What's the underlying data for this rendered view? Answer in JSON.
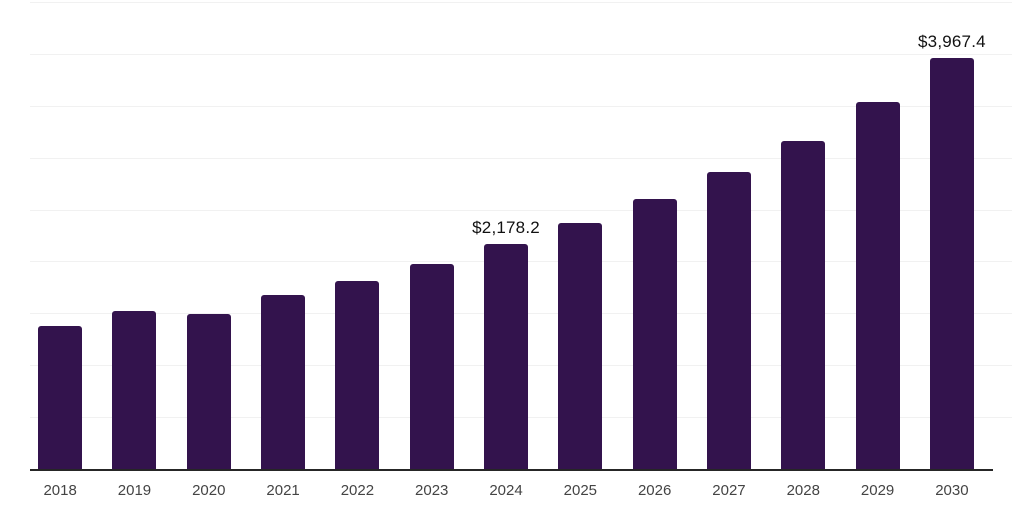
{
  "chart_data": {
    "type": "bar",
    "title": "",
    "xlabel": "",
    "ylabel": "",
    "categories": [
      "2018",
      "2019",
      "2020",
      "2021",
      "2022",
      "2023",
      "2024",
      "2025",
      "2026",
      "2027",
      "2028",
      "2029",
      "2030"
    ],
    "series": [
      {
        "name": "value",
        "values": [
          1390,
          1535,
          1505,
          1690,
          1820,
          1985,
          2178.2,
          2380,
          2610,
          2870,
          3170,
          3545,
          3967.4
        ]
      }
    ],
    "data_labels": [
      "",
      "",
      "",
      "",
      "",
      "",
      "$2,178.2",
      "",
      "",
      "",
      "",
      "",
      "$3,967.4"
    ],
    "ylim": [
      0,
      4500
    ],
    "grid_interval": 500,
    "grid": true,
    "legend": false,
    "colors": {
      "bar": "#33134d",
      "gridline": "#f1f1f1",
      "axis_line": "#262626",
      "tick_label": "#444444",
      "data_label": "#111111",
      "background": "#ffffff"
    }
  }
}
